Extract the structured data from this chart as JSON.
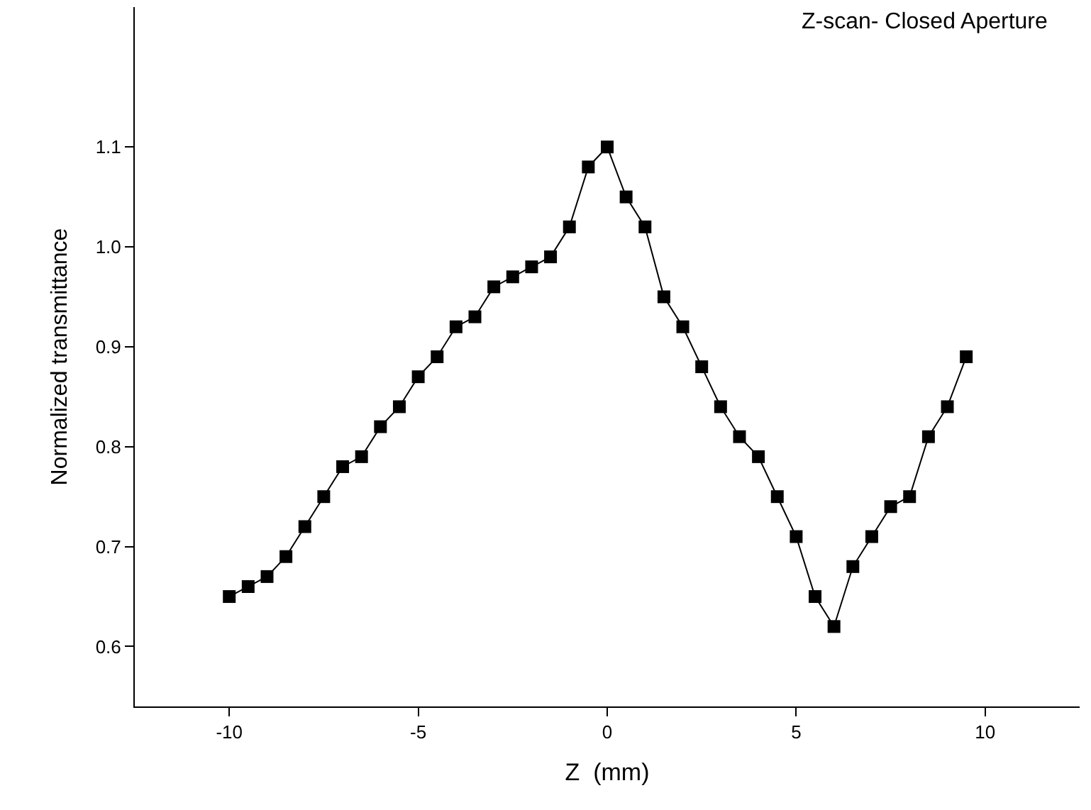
{
  "chart_data": {
    "type": "line",
    "xlabel": "Z  (mm)",
    "ylabel": "Normalized transmittance",
    "annotations": [
      "Z-scan- Closed Aperture"
    ],
    "x": [
      -10,
      -9.5,
      -9,
      -8.5,
      -8,
      -7.5,
      -7,
      -6.5,
      -6,
      -5.5,
      -5,
      -4.5,
      -4,
      -3.5,
      -3,
      -2.5,
      -2,
      -1.5,
      -1,
      -0.5,
      0,
      0.5,
      1,
      1.5,
      2,
      2.5,
      3,
      3.5,
      4,
      4.5,
      5,
      5.5,
      6,
      6.5,
      7,
      7.5,
      8,
      8.5,
      9,
      9.5
    ],
    "series": [
      {
        "color": "#000000",
        "values": [
          0.65,
          0.66,
          0.67,
          0.69,
          0.72,
          0.75,
          0.78,
          0.79,
          0.82,
          0.84,
          0.87,
          0.89,
          0.92,
          0.93,
          0.96,
          0.97,
          0.98,
          0.99,
          1.02,
          1.08,
          1.1,
          1.05,
          1.02,
          0.95,
          0.92,
          0.88,
          0.84,
          0.81,
          0.79,
          0.75,
          0.71,
          0.65,
          0.62,
          0.68,
          0.71,
          0.74,
          0.75,
          0.81,
          0.84,
          0.89
        ]
      }
    ],
    "xlim": [
      -12.5,
      12.5
    ],
    "xticks": [
      -10,
      -5,
      0,
      5,
      10
    ],
    "ylim": [
      0.54,
      1.24
    ],
    "yticks": [
      0.6,
      0.7,
      0.8,
      0.9,
      {
        "value": 1.0,
        "label": "1.0"
      },
      1.1
    ],
    "marker": "square",
    "line_style": "solid"
  }
}
